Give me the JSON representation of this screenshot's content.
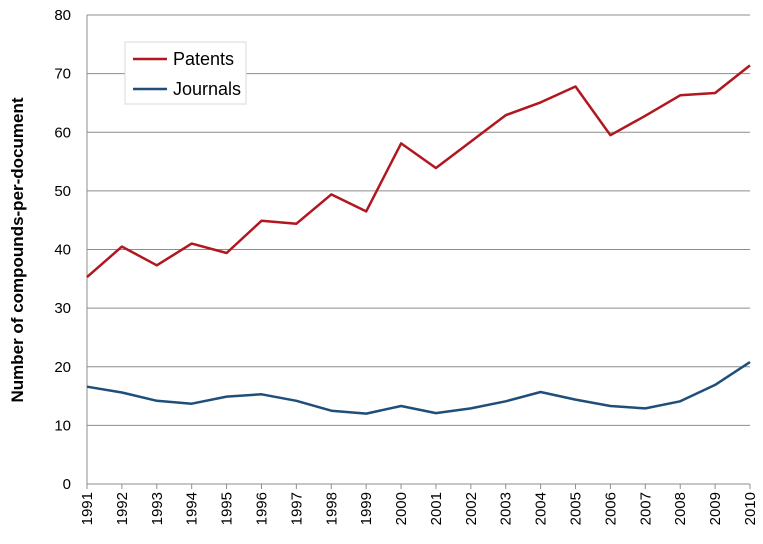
{
  "chart_data": {
    "type": "line",
    "title": "",
    "xlabel": "",
    "ylabel": "Number of compounds-per-document",
    "ylim": [
      0,
      80
    ],
    "yticks": [
      0,
      10,
      20,
      30,
      40,
      50,
      60,
      70,
      80
    ],
    "grid": true,
    "legend_position": "top-left",
    "categories": [
      "1991",
      "1992",
      "1993",
      "1994",
      "1995",
      "1996",
      "1997",
      "1998",
      "1999",
      "2000",
      "2001",
      "2002",
      "2003",
      "2004",
      "2005",
      "2006",
      "2007",
      "2008",
      "2009",
      "2010"
    ],
    "series": [
      {
        "name": "Patents",
        "color": "#b0171f",
        "values": [
          35.3,
          40.5,
          37.3,
          41.0,
          39.4,
          44.9,
          44.4,
          49.4,
          46.5,
          58.1,
          53.9,
          58.4,
          62.9,
          65.1,
          67.8,
          59.5,
          62.8,
          66.3,
          66.7,
          71.4
        ]
      },
      {
        "name": "Journals",
        "color": "#1f4e79",
        "values": [
          16.6,
          15.6,
          14.2,
          13.7,
          14.9,
          15.3,
          14.2,
          12.5,
          12.0,
          13.3,
          12.1,
          12.9,
          14.1,
          15.7,
          14.4,
          13.3,
          12.9,
          14.1,
          16.9,
          20.8
        ]
      }
    ]
  }
}
